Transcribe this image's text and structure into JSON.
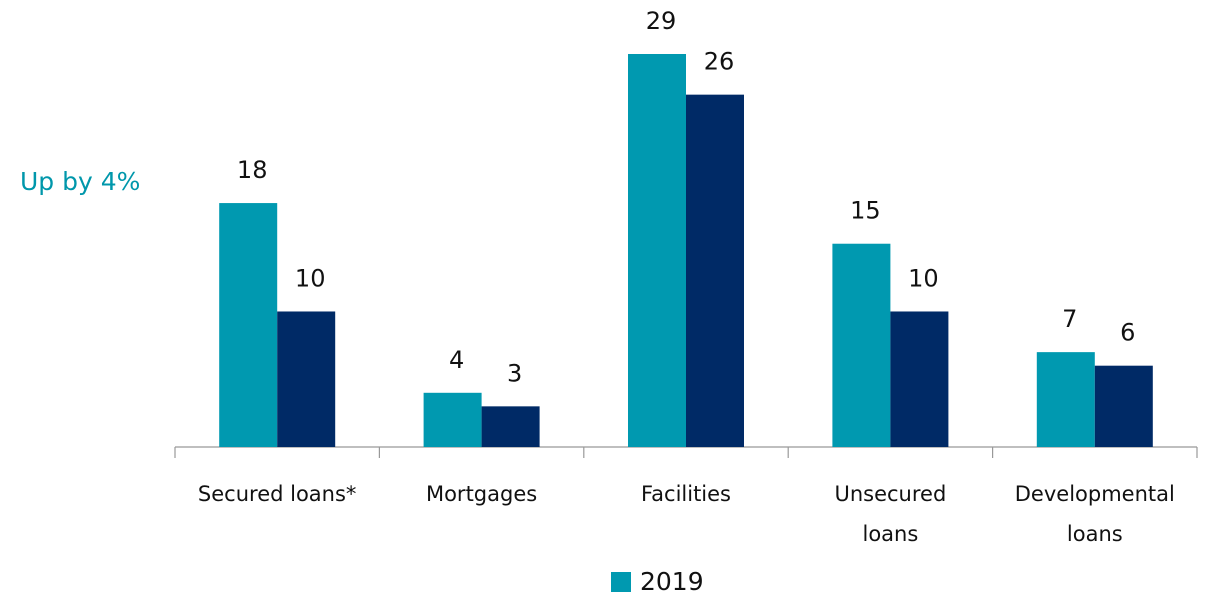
{
  "chart_data": {
    "type": "bar",
    "annotation": "Up by 4%",
    "categories": [
      "Secured loans*",
      "Mortgages",
      "Facilities",
      "Unsecured loans",
      "Developmental loans"
    ],
    "series": [
      {
        "name": "2019",
        "color": "#0099b0",
        "values": [
          18,
          4,
          29,
          15,
          7
        ]
      },
      {
        "color": "#002a66",
        "values": [
          10,
          3,
          26,
          10,
          6
        ]
      }
    ]
  }
}
